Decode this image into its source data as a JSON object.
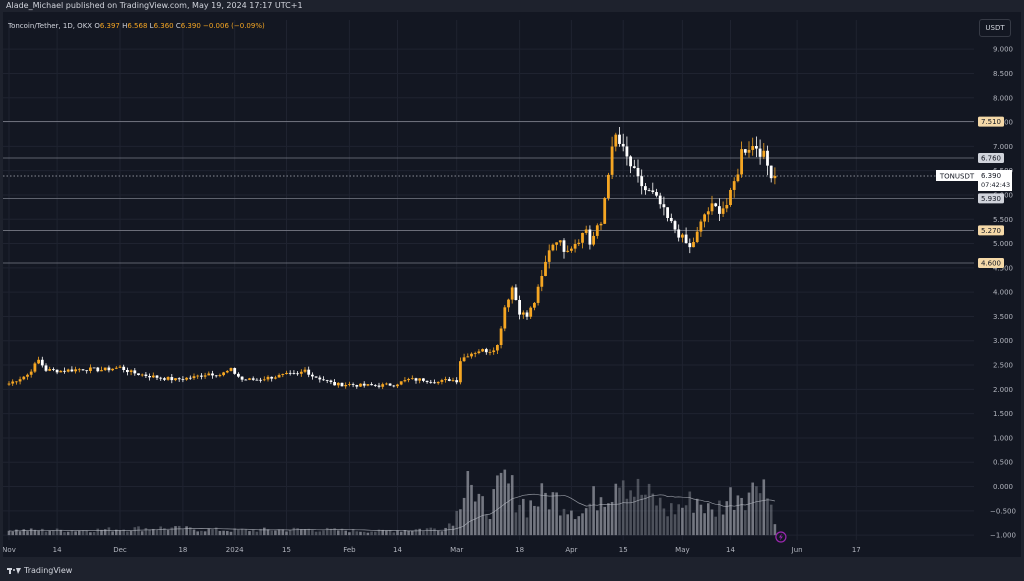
{
  "header": {
    "published": "Alade_Michael published on TradingView.com, May 19, 2024 17:17 UTC+1"
  },
  "symbol": {
    "name": "Toncoin/Tether, 1D, OKX",
    "open_label": "O",
    "open": "6.397",
    "high_label": "H",
    "high": "6.568",
    "low_label": "L",
    "low": "6.360",
    "close_label": "C",
    "close": "6.390",
    "change": "−0.006 (−0.09%)"
  },
  "currency": "USDT",
  "footer": {
    "brand": "TradingView"
  },
  "colors": {
    "background": "#131722",
    "up": "#f5a623",
    "down": "#ffffff",
    "grid": "#1f2330",
    "level_line": "#787b86",
    "volume": "#9598a1",
    "volume_ma": "#b2b5be",
    "price_badge_up": "#f5d9a8",
    "price_badge_down": "#d1d4dc",
    "alert_icon": "#9c27b0"
  },
  "chart_data": {
    "type": "candlestick",
    "title": "Toncoin/Tether, 1D, OKX",
    "ylabel": "USDT",
    "ylim": [
      -1.1,
      9.6
    ],
    "yticks": [
      "9.000",
      "8.500",
      "8.000",
      "7.500",
      "7.000",
      "6.500",
      "6.000",
      "5.500",
      "5.000",
      "4.500",
      "4.000",
      "3.500",
      "3.000",
      "2.500",
      "2.000",
      "1.500",
      "1.000",
      "0.500",
      "0.000",
      "−0.500",
      "−1.000"
    ],
    "ytick_values": [
      9,
      8.5,
      8,
      7.5,
      7,
      6.5,
      6,
      5.5,
      5,
      4.5,
      4,
      3.5,
      3,
      2.5,
      2,
      1.5,
      1,
      0.5,
      0,
      -0.5,
      -1
    ],
    "xrange_days": [
      0,
      226
    ],
    "xticks": [
      {
        "label": "Nov",
        "day": 0
      },
      {
        "label": "14",
        "day": 13
      },
      {
        "label": "Dec",
        "day": 30
      },
      {
        "label": "18",
        "day": 47
      },
      {
        "label": "2024",
        "day": 61
      },
      {
        "label": "15",
        "day": 75
      },
      {
        "label": "Feb",
        "day": 92
      },
      {
        "label": "14",
        "day": 105
      },
      {
        "label": "Mar",
        "day": 121
      },
      {
        "label": "18",
        "day": 138
      },
      {
        "label": "Apr",
        "day": 152
      },
      {
        "label": "15",
        "day": 166
      },
      {
        "label": "May",
        "day": 182
      },
      {
        "label": "14",
        "day": 195
      },
      {
        "label": "Jun",
        "day": 213
      },
      {
        "label": "17",
        "day": 229
      }
    ],
    "levels": [
      {
        "label": "7.510",
        "value": 7.51,
        "style": "up"
      },
      {
        "label": "6.760",
        "value": 6.76,
        "style": "down"
      },
      {
        "label": "5.930",
        "value": 5.93,
        "style": "down"
      },
      {
        "label": "5.270",
        "value": 5.27,
        "style": "up"
      },
      {
        "label": "4.600",
        "value": 4.6,
        "style": "up"
      }
    ],
    "last_price": {
      "symbol": "TONUSDT",
      "value": 6.39,
      "label": "6.390",
      "countdown": "07:42:43"
    },
    "close_anchors": [
      [
        0,
        2.12
      ],
      [
        5,
        2.3
      ],
      [
        8,
        2.6
      ],
      [
        10,
        2.4
      ],
      [
        14,
        2.38
      ],
      [
        20,
        2.42
      ],
      [
        25,
        2.4
      ],
      [
        30,
        2.45
      ],
      [
        33,
        2.35
      ],
      [
        36,
        2.3
      ],
      [
        40,
        2.25
      ],
      [
        45,
        2.2
      ],
      [
        50,
        2.25
      ],
      [
        54,
        2.33
      ],
      [
        57,
        2.3
      ],
      [
        60,
        2.4
      ],
      [
        63,
        2.2
      ],
      [
        67,
        2.2
      ],
      [
        71,
        2.25
      ],
      [
        75,
        2.3
      ],
      [
        78,
        2.3
      ],
      [
        80,
        2.4
      ],
      [
        82,
        2.28
      ],
      [
        85,
        2.2
      ],
      [
        88,
        2.1
      ],
      [
        92,
        2.1
      ],
      [
        95,
        2.08
      ],
      [
        100,
        2.08
      ],
      [
        104,
        2.1
      ],
      [
        108,
        2.2
      ],
      [
        112,
        2.2
      ],
      [
        116,
        2.15
      ],
      [
        119,
        2.2
      ],
      [
        121,
        2.18
      ],
      [
        122,
        2.6
      ],
      [
        124,
        2.72
      ],
      [
        127,
        2.8
      ],
      [
        130,
        2.8
      ],
      [
        132,
        2.9
      ],
      [
        134,
        3.7
      ],
      [
        136,
        4.1
      ],
      [
        138,
        3.6
      ],
      [
        140,
        3.5
      ],
      [
        142,
        3.8
      ],
      [
        144,
        4.3
      ],
      [
        146,
        4.9
      ],
      [
        148,
        5.1
      ],
      [
        150,
        4.9
      ],
      [
        152,
        4.95
      ],
      [
        154,
        5.1
      ],
      [
        156,
        5.3
      ],
      [
        157,
        5.0
      ],
      [
        159,
        5.3
      ],
      [
        160,
        5.4
      ],
      [
        162,
        6.5
      ],
      [
        163,
        6.9
      ],
      [
        164,
        7.2
      ],
      [
        166,
        6.9
      ],
      [
        168,
        6.6
      ],
      [
        170,
        6.3
      ],
      [
        172,
        6.1
      ],
      [
        174,
        6.0
      ],
      [
        176,
        5.8
      ],
      [
        178,
        5.5
      ],
      [
        180,
        5.3
      ],
      [
        182,
        5.1
      ],
      [
        184,
        4.9
      ],
      [
        186,
        5.2
      ],
      [
        188,
        5.6
      ],
      [
        190,
        5.75
      ],
      [
        192,
        5.7
      ],
      [
        194,
        5.8
      ],
      [
        195,
        6.0
      ],
      [
        197,
        6.5
      ],
      [
        198,
        6.9
      ],
      [
        200,
        7.0
      ],
      [
        202,
        7.0
      ],
      [
        204,
        6.8
      ],
      [
        205,
        6.6
      ],
      [
        206,
        6.45
      ],
      [
        207,
        6.39
      ]
    ],
    "volume_anchors": [
      [
        0,
        0.1
      ],
      [
        20,
        0.1
      ],
      [
        40,
        0.15
      ],
      [
        60,
        0.1
      ],
      [
        80,
        0.12
      ],
      [
        100,
        0.08
      ],
      [
        118,
        0.15
      ],
      [
        121,
        0.45
      ],
      [
        124,
        1.6
      ],
      [
        126,
        0.6
      ],
      [
        130,
        0.6
      ],
      [
        134,
        1.1
      ],
      [
        136,
        0.9
      ],
      [
        140,
        0.6
      ],
      [
        145,
        0.8
      ],
      [
        150,
        0.7
      ],
      [
        155,
        0.45
      ],
      [
        160,
        0.9
      ],
      [
        163,
        1.0
      ],
      [
        165,
        1.5
      ],
      [
        168,
        1.0
      ],
      [
        170,
        0.9
      ],
      [
        175,
        0.7
      ],
      [
        178,
        0.5
      ],
      [
        182,
        0.6
      ],
      [
        186,
        0.75
      ],
      [
        190,
        0.45
      ],
      [
        195,
        0.8
      ],
      [
        198,
        0.95
      ],
      [
        201,
        0.9
      ],
      [
        203,
        1.5
      ],
      [
        205,
        0.8
      ],
      [
        207,
        0.4
      ]
    ],
    "volume_max": 2.6,
    "volume_baseline": -1.0
  }
}
